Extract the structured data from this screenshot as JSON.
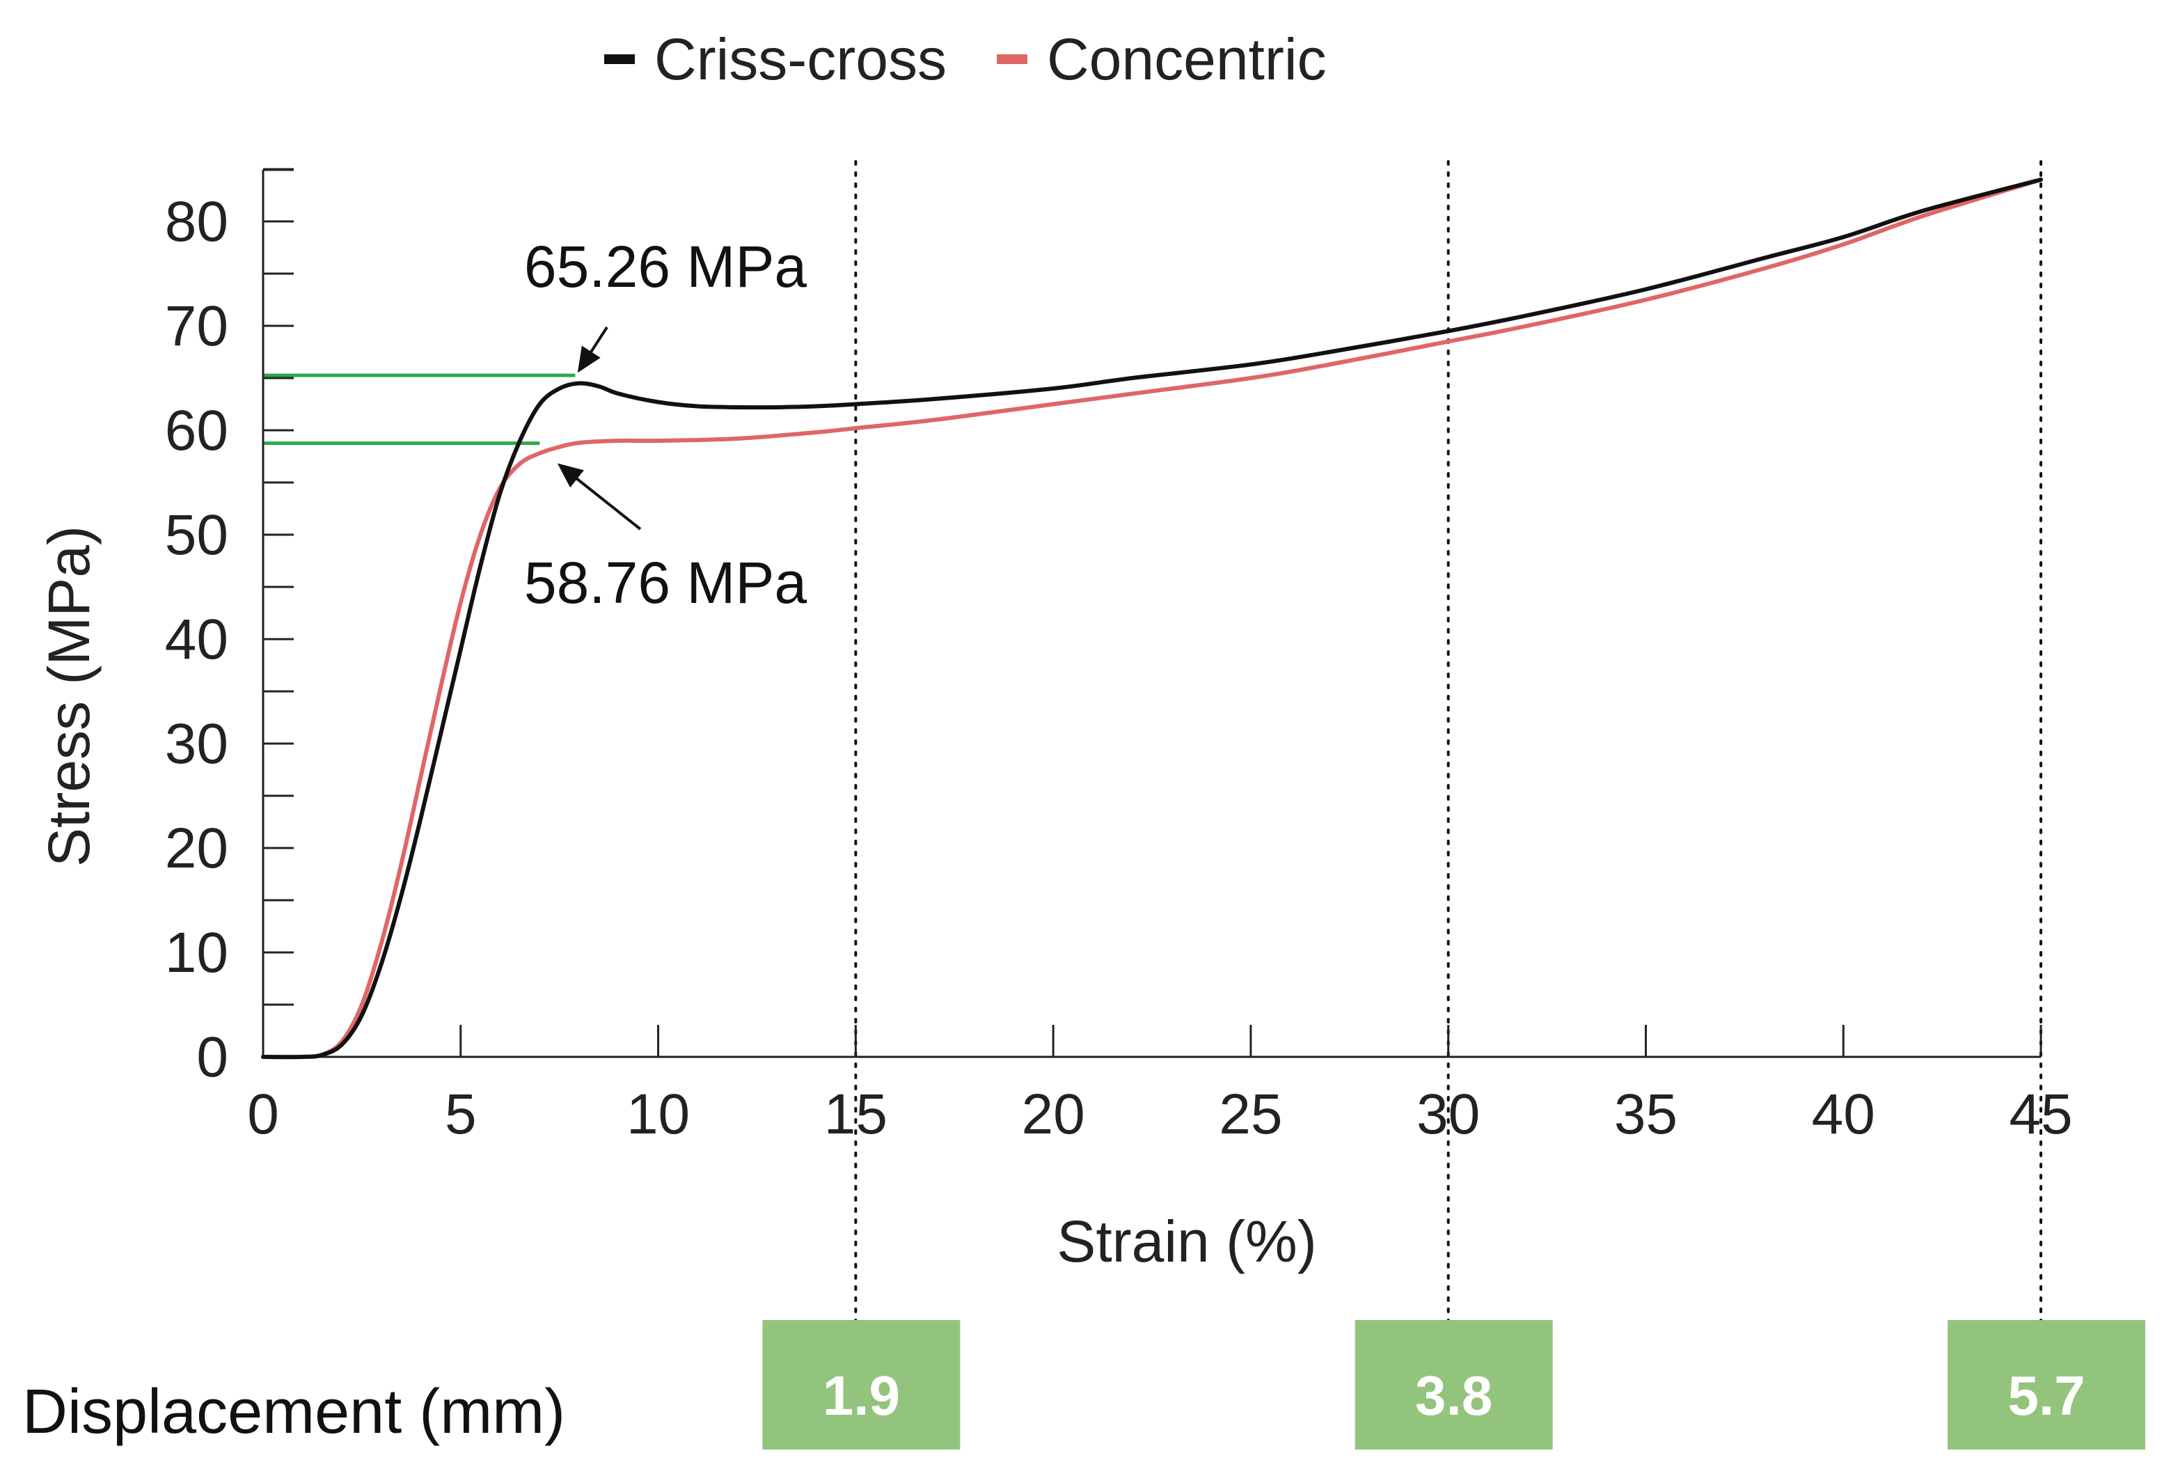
{
  "chart_data": {
    "type": "line",
    "title": "",
    "xlabel": "Strain (%)",
    "ylabel": "Stress (MPa)",
    "xlim": [
      0,
      45
    ],
    "ylim": [
      0,
      85
    ],
    "xticks": [
      0,
      5,
      10,
      15,
      20,
      25,
      30,
      35,
      40,
      45
    ],
    "yticks": [
      0,
      10,
      20,
      30,
      40,
      50,
      60,
      70,
      80
    ],
    "legend_position": "top-center",
    "series": [
      {
        "name": "Criss-cross",
        "color": "#111111",
        "x": [
          0,
          1.0,
          1.5,
          2.0,
          2.5,
          3.0,
          3.5,
          4.0,
          4.5,
          5.0,
          5.5,
          6.0,
          6.5,
          7.0,
          7.5,
          8.0,
          8.5,
          9.0,
          10.0,
          11.0,
          12.0,
          13.0,
          14.0,
          15.0,
          17.0,
          20.0,
          22.0,
          25.0,
          27.0,
          30.0,
          32.0,
          35.0,
          38.0,
          40.0,
          42.0,
          45.0
        ],
        "y": [
          0,
          0,
          0.2,
          1.2,
          4.0,
          9.0,
          15.5,
          23.0,
          31.0,
          39.0,
          47.0,
          54.0,
          59.0,
          62.5,
          64.0,
          64.5,
          64.2,
          63.5,
          62.7,
          62.3,
          62.2,
          62.2,
          62.3,
          62.5,
          63.0,
          64.0,
          65.0,
          66.3,
          67.5,
          69.5,
          71.0,
          73.5,
          76.5,
          78.5,
          81.0,
          84.0
        ]
      },
      {
        "name": "Concentric",
        "color": "#e06666",
        "x": [
          0,
          1.0,
          1.5,
          2.0,
          2.5,
          3.0,
          3.5,
          4.0,
          4.5,
          5.0,
          5.5,
          6.0,
          6.5,
          7.0,
          7.5,
          8.0,
          9.0,
          10.0,
          12.0,
          14.0,
          15.0,
          17.0,
          20.0,
          22.0,
          25.0,
          27.0,
          30.0,
          32.0,
          35.0,
          38.0,
          40.0,
          42.0,
          45.0
        ],
        "y": [
          0,
          0,
          0.2,
          1.5,
          5.0,
          11.0,
          18.5,
          27.0,
          35.5,
          43.5,
          50.0,
          54.5,
          56.8,
          57.8,
          58.4,
          58.8,
          59.0,
          59.0,
          59.2,
          59.8,
          60.2,
          61.0,
          62.5,
          63.5,
          65.0,
          66.3,
          68.5,
          70.0,
          72.5,
          75.5,
          77.8,
          80.5,
          84.0
        ]
      }
    ],
    "annotations": [
      {
        "text": "65.26 MPa",
        "value": 65.26,
        "series": "Criss-cross",
        "at_x": 7.9
      },
      {
        "text": "58.76 MPa",
        "value": 58.76,
        "series": "Concentric",
        "at_x": 7.0
      }
    ],
    "vertical_markers": [
      15,
      30,
      45
    ]
  },
  "displacement": {
    "label": "Displacement (mm)",
    "values": [
      {
        "strain": 15,
        "text": "1.9"
      },
      {
        "strain": 30,
        "text": "3.8"
      },
      {
        "strain": 45,
        "text": "5.7"
      }
    ]
  },
  "colors": {
    "reference_line": "#2ea84a",
    "box_fill": "#93c47d",
    "axis": "#222222"
  }
}
